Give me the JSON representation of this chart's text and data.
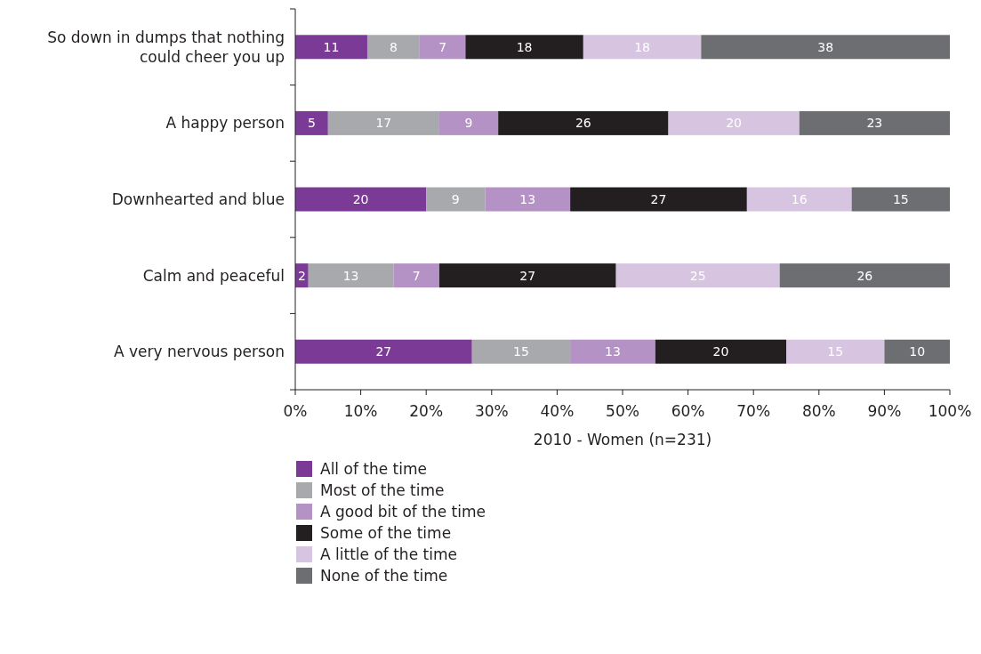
{
  "chart_data": {
    "type": "bar",
    "orientation": "horizontal",
    "stacked": true,
    "xlabel": "2010 - Women (n=231)",
    "categories": [
      "So down in dumps that nothing could cheer you up",
      "A happy person",
      "Downhearted and blue",
      "Calm and peaceful",
      "A very nervous person"
    ],
    "series": [
      {
        "name": "All of the time",
        "color": "#7b3a96",
        "values": [
          11,
          5,
          20,
          2,
          27
        ]
      },
      {
        "name": "Most of the time",
        "color": "#a7a9ac",
        "values": [
          8,
          17,
          9,
          13,
          15
        ]
      },
      {
        "name": "A good bit of the time",
        "color": "#b592c5",
        "values": [
          7,
          9,
          13,
          7,
          13
        ]
      },
      {
        "name": "Some of the time",
        "color": "#231f20",
        "values": [
          18,
          26,
          27,
          27,
          20
        ]
      },
      {
        "name": "A little of the time",
        "color": "#d7c4e0",
        "values": [
          18,
          20,
          16,
          25,
          15
        ]
      },
      {
        "name": "None of the time",
        "color": "#6d6e71",
        "values": [
          38,
          23,
          15,
          26,
          10
        ]
      }
    ],
    "xlim": [
      0,
      100
    ],
    "xticks": [
      {
        "value": 0,
        "label": "0%"
      },
      {
        "value": 10,
        "label": "10%"
      },
      {
        "value": 20,
        "label": "20%"
      },
      {
        "value": 30,
        "label": "30%"
      },
      {
        "value": 40,
        "label": "40%"
      },
      {
        "value": 50,
        "label": "50%"
      },
      {
        "value": 60,
        "label": "60%"
      },
      {
        "value": 70,
        "label": "70%"
      },
      {
        "value": 80,
        "label": "80%"
      },
      {
        "value": 90,
        "label": "90%"
      },
      {
        "value": 100,
        "label": "100%"
      }
    ],
    "data_labels": true,
    "legend": "bottom",
    "grid": false
  }
}
